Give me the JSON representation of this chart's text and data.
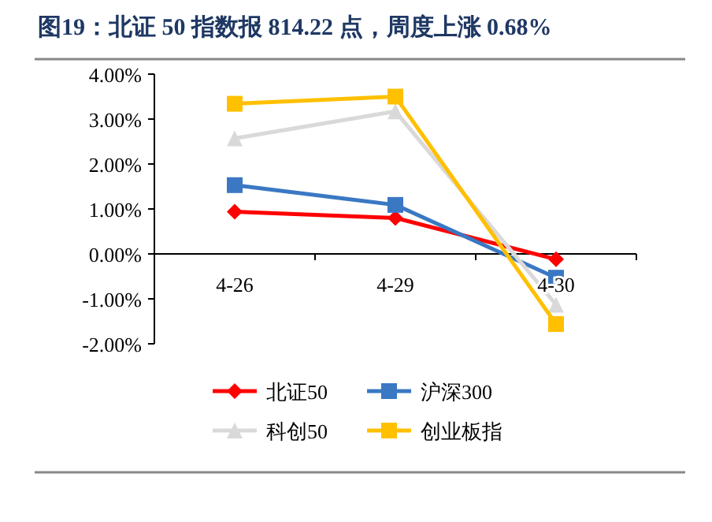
{
  "chart_data": {
    "type": "line",
    "title": "图19：北证 50 指数报 814.22 点，周度上涨 0.68%",
    "categories": [
      "4-26",
      "4-29",
      "4-30"
    ],
    "series": [
      {
        "name": "北证50",
        "color": "#ff0000",
        "marker": "diamond",
        "values": [
          0.94,
          0.8,
          -0.12
        ]
      },
      {
        "name": "沪深300",
        "color": "#3a78c3",
        "marker": "square",
        "values": [
          1.53,
          1.09,
          -0.53
        ]
      },
      {
        "name": "科创50",
        "color": "#d9d9d9",
        "marker": "triangle",
        "values": [
          2.57,
          3.17,
          -1.13
        ]
      },
      {
        "name": "创业板指",
        "color": "#ffc000",
        "marker": "square",
        "values": [
          3.34,
          3.5,
          -1.56
        ]
      }
    ],
    "ylim": [
      -2,
      4
    ],
    "yticks": [
      {
        "value": 4,
        "label": "4.00%"
      },
      {
        "value": 3,
        "label": "3.00%"
      },
      {
        "value": 2,
        "label": "2.00%"
      },
      {
        "value": 1,
        "label": "1.00%"
      },
      {
        "value": 0,
        "label": "0.00%"
      },
      {
        "value": -1,
        "label": "-1.00%"
      },
      {
        "value": -2,
        "label": "-2.00%"
      }
    ],
    "legend": "bottom",
    "line_style": "solid"
  }
}
